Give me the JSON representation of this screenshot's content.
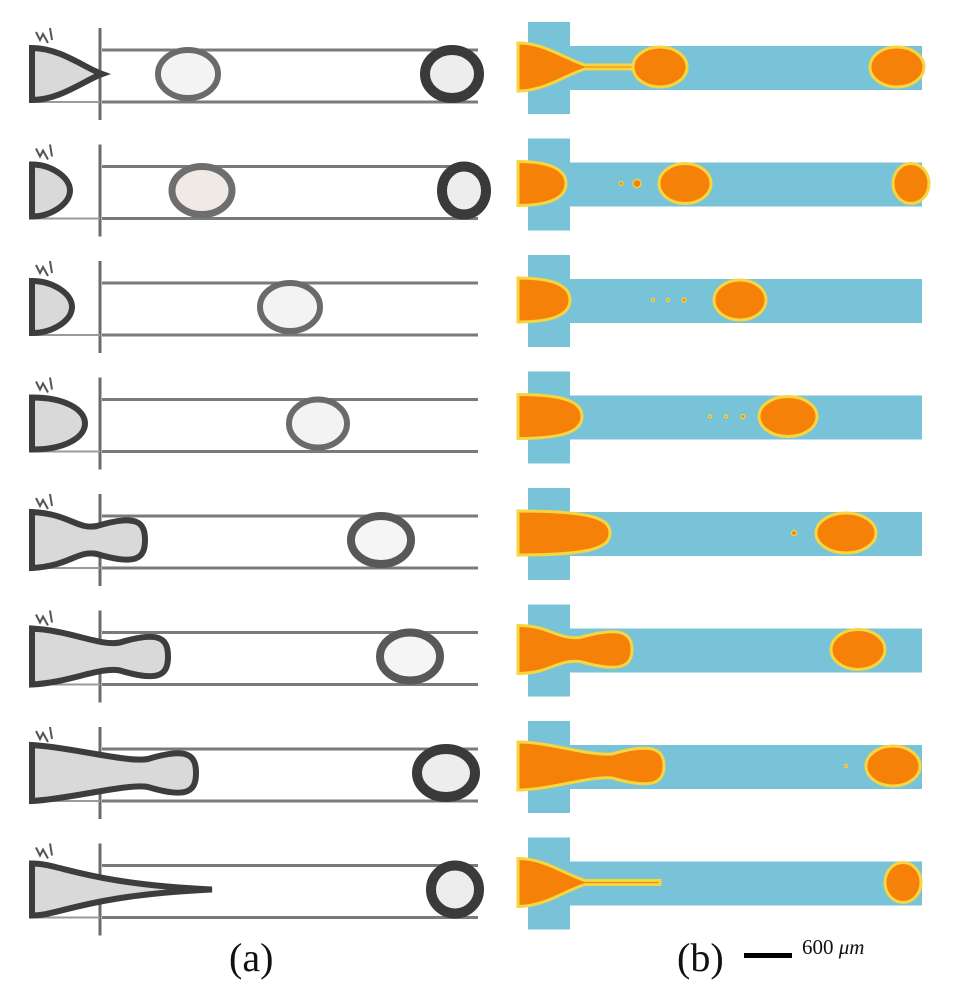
{
  "figure": {
    "panel_a": {
      "caption": "(a)",
      "rows": [
        {
          "tip": 102,
          "neck": "pinch",
          "drops": [
            {
              "cx": 188,
              "rx": 30,
              "tone": "light"
            },
            {
              "cx": 452,
              "rx": 27,
              "tone": "dark"
            }
          ]
        },
        {
          "tip": 70,
          "neck": "none",
          "drops": [
            {
              "cx": 202,
              "rx": 30,
              "tone": "fill"
            },
            {
              "cx": 464,
              "rx": 22,
              "tone": "dark"
            }
          ]
        },
        {
          "tip": 72,
          "neck": "none",
          "drops": [
            {
              "cx": 290,
              "rx": 30,
              "tone": "light"
            }
          ]
        },
        {
          "tip": 85,
          "neck": "none",
          "drops": [
            {
              "cx": 318,
              "rx": 29,
              "tone": "light"
            }
          ]
        },
        {
          "tip": 145,
          "neck": "lobe",
          "drops": [
            {
              "cx": 381,
              "rx": 30,
              "tone": "mid"
            }
          ]
        },
        {
          "tip": 168,
          "neck": "lobe",
          "drops": [
            {
              "cx": 410,
              "rx": 30,
              "tone": "mid"
            }
          ]
        },
        {
          "tip": 196,
          "neck": "lobe",
          "drops": [
            {
              "cx": 446,
              "rx": 29,
              "tone": "dark"
            }
          ]
        },
        {
          "tip": 212,
          "neck": "pinch",
          "drops": [
            {
              "cx": 455,
              "rx": 24,
              "tone": "dark"
            }
          ]
        }
      ]
    },
    "panel_b": {
      "caption": "(b)",
      "colors": {
        "channel": "#79c3d8",
        "droplet": "#f58109",
        "interface": "#f6d640"
      },
      "rows": [
        {
          "tip": 634,
          "neck": "thread",
          "drops": [
            {
              "cx": 660,
              "rx": 27
            },
            {
              "cx": 897,
              "rx": 27
            }
          ],
          "satellites": []
        },
        {
          "tip": 566,
          "neck": "none",
          "drops": [
            {
              "cx": 685,
              "rx": 26
            },
            {
              "cx": 911,
              "rx": 18
            }
          ],
          "satellites": [
            {
              "cx": 621,
              "r": 2
            },
            {
              "cx": 637,
              "r": 4
            }
          ]
        },
        {
          "tip": 570,
          "neck": "none",
          "drops": [
            {
              "cx": 740,
              "rx": 26
            }
          ],
          "satellites": [
            {
              "cx": 653,
              "r": 1.5
            },
            {
              "cx": 668,
              "r": 1.5
            },
            {
              "cx": 684,
              "r": 2
            }
          ]
        },
        {
          "tip": 582,
          "neck": "none",
          "drops": [
            {
              "cx": 788,
              "rx": 29
            }
          ],
          "satellites": [
            {
              "cx": 710,
              "r": 1.5
            },
            {
              "cx": 726,
              "r": 1.5
            },
            {
              "cx": 743,
              "r": 2
            }
          ]
        },
        {
          "tip": 610,
          "neck": "none",
          "drops": [
            {
              "cx": 846,
              "rx": 30
            }
          ],
          "satellites": [
            {
              "cx": 794,
              "r": 2.5
            }
          ]
        },
        {
          "tip": 632,
          "neck": "lobe",
          "drops": [
            {
              "cx": 858,
              "rx": 27
            }
          ],
          "satellites": []
        },
        {
          "tip": 664,
          "neck": "lobe",
          "drops": [
            {
              "cx": 893,
              "rx": 27
            }
          ],
          "satellites": [
            {
              "cx": 846,
              "r": 1.5
            }
          ]
        },
        {
          "tip": 660,
          "neck": "thread",
          "drops": [
            {
              "cx": 903,
              "rx": 18
            }
          ],
          "satellites": []
        }
      ]
    },
    "scale": {
      "value": "600",
      "unit": "μm"
    }
  }
}
